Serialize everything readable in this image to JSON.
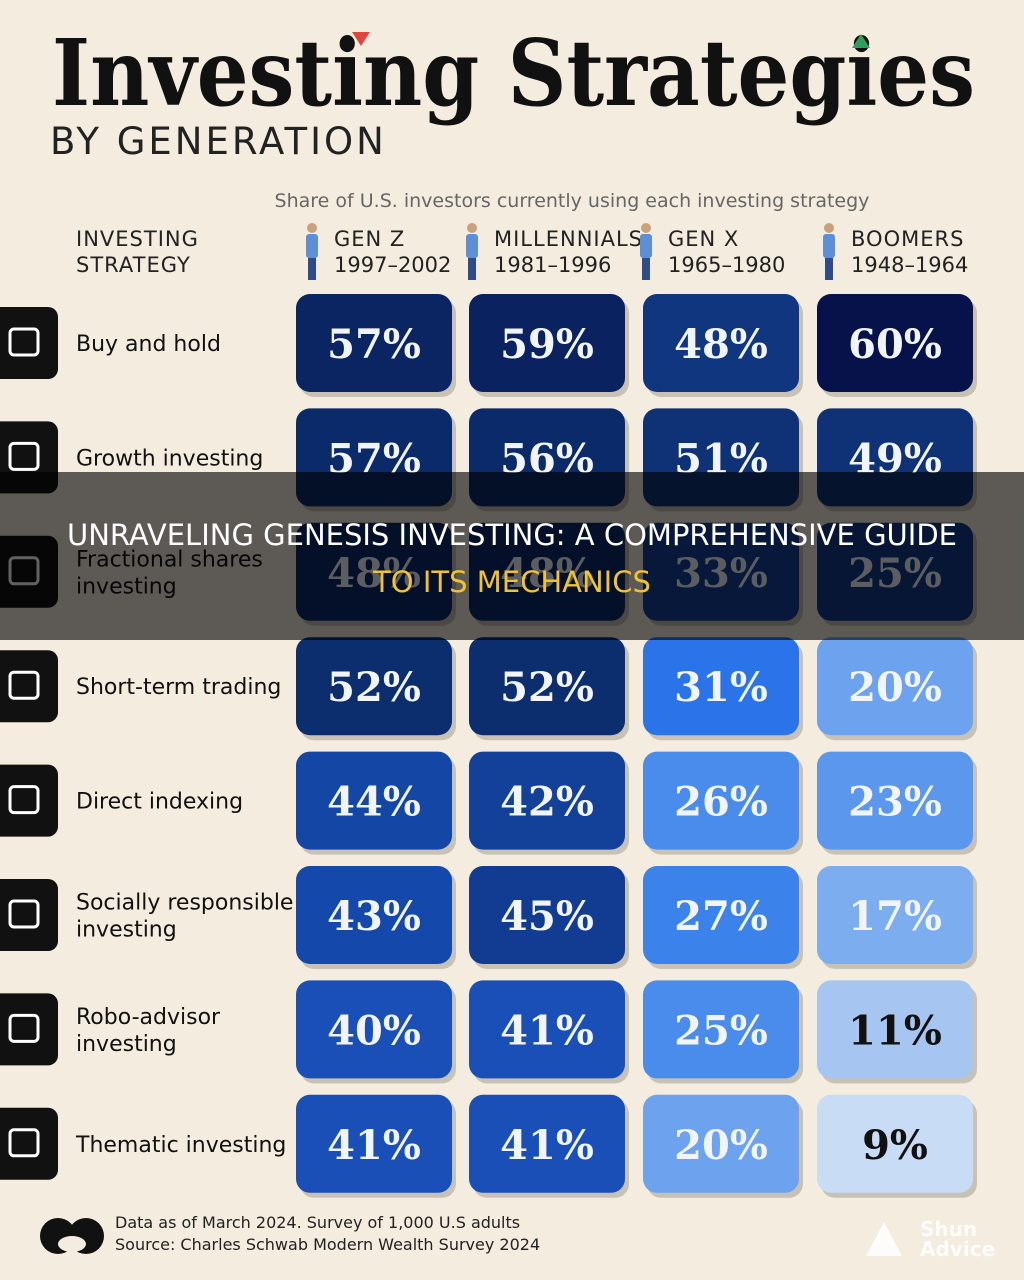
{
  "header": {
    "title": "Investing Strategies",
    "subtitle": "BY GENERATION",
    "caption": "Share of U.S. investors currently using each investing strategy"
  },
  "table": {
    "row_header": [
      "INVESTING",
      "STRATEGY"
    ],
    "columns": [
      {
        "name": "GEN Z",
        "years": "1997–2002"
      },
      {
        "name": "MILLENNIALS",
        "years": "1981–1996"
      },
      {
        "name": "GEN X",
        "years": "1965–1980"
      },
      {
        "name": "BOOMERS",
        "years": "1948–1964"
      }
    ],
    "rows": [
      {
        "label": [
          "Buy and hold"
        ],
        "cells": [
          "57%",
          "59%",
          "48%",
          "60%"
        ],
        "colors": [
          "#0b2563",
          "#0a2260",
          "#10367f",
          "#07124a"
        ]
      },
      {
        "label": [
          "Growth investing"
        ],
        "cells": [
          "57%",
          "56%",
          "51%",
          "49%"
        ],
        "colors": [
          "#0b2a6a",
          "#0b2a6a",
          "#0f3277",
          "#0f3277"
        ]
      },
      {
        "label": [
          "Fractional shares",
          "investing"
        ],
        "cells": [
          "48%",
          "48%",
          "33%",
          "25%"
        ],
        "colors": [
          "#0c2c6c",
          "#0c2c6c",
          "#134098",
          "#113a88"
        ]
      },
      {
        "label": [
          "Short-term trading"
        ],
        "cells": [
          "52%",
          "52%",
          "31%",
          "20%"
        ],
        "colors": [
          "#0c2d6e",
          "#0c2d6e",
          "#2a73e8",
          "#6ca2ee"
        ]
      },
      {
        "label": [
          "Direct indexing"
        ],
        "cells": [
          "44%",
          "42%",
          "26%",
          "23%"
        ],
        "colors": [
          "#1446a6",
          "#134098",
          "#4a8ceb",
          "#5b97ec"
        ]
      },
      {
        "label": [
          "Socially responsible",
          "investing"
        ],
        "cells": [
          "43%",
          "45%",
          "27%",
          "17%"
        ],
        "colors": [
          "#1548ab",
          "#113c91",
          "#3b83ea",
          "#7cadef"
        ]
      },
      {
        "label": [
          "Robo-advisor",
          "investing"
        ],
        "cells": [
          "40%",
          "41%",
          "25%",
          "11%"
        ],
        "colors": [
          "#1a4fb8",
          "#1a4fb8",
          "#4a8ceb",
          "#a6c5f0"
        ]
      },
      {
        "label": [
          "Thematic investing"
        ],
        "cells": [
          "41%",
          "41%",
          "20%",
          "9%"
        ],
        "colors": [
          "#1a4fb8",
          "#1a4fb8",
          "#6ca2ee",
          "#c9dcf5"
        ]
      }
    ]
  },
  "footer": {
    "note": "Data as of March 2024. Survey of 1,000 U.S adults",
    "source": "Source: Charles Schwab Modern Wealth Survey 2024",
    "watermark": [
      "Shun",
      "Advice"
    ]
  },
  "banner": {
    "lines": [
      "UNRAVELING GENESIS INVESTING: A COMPREHENSIVE GUIDE",
      "TO ITS MECHANICS"
    ]
  }
}
